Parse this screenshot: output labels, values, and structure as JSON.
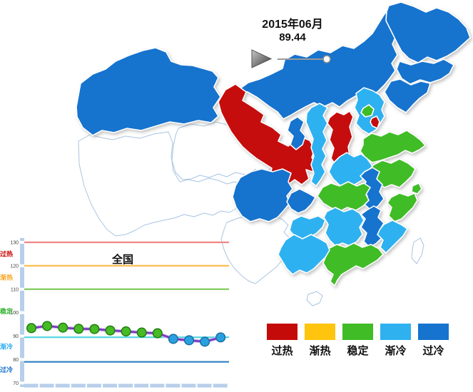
{
  "header": {
    "period": "2015年06月",
    "value": "89.44"
  },
  "colors": {
    "过热": "#C50A0A",
    "渐热": "#FFC40D",
    "稳定": "#3FBC26",
    "渐冷": "#2FB1F0",
    "过冷": "#1673CE",
    "none": "#FFFFFF"
  },
  "legend": {
    "items": [
      {
        "label": "过热",
        "color": "#C50A0A"
      },
      {
        "label": "渐热",
        "color": "#FFC40D"
      },
      {
        "label": "稳定",
        "color": "#3FBC26"
      },
      {
        "label": "渐冷",
        "color": "#2FB1F0"
      },
      {
        "label": "过冷",
        "color": "#1673CE"
      }
    ]
  },
  "map": {
    "provinces": [
      {
        "name": "西藏",
        "status": "none"
      },
      {
        "name": "青海",
        "status": "none"
      },
      {
        "name": "云南",
        "status": "none"
      },
      {
        "name": "海南",
        "status": "none"
      },
      {
        "name": "台湾",
        "status": "none"
      },
      {
        "name": "新疆",
        "status": "过冷"
      },
      {
        "name": "内蒙古",
        "status": "过冷"
      },
      {
        "name": "黑龙江",
        "status": "过冷"
      },
      {
        "name": "吉林",
        "status": "过冷"
      },
      {
        "name": "辽宁",
        "status": "过冷"
      },
      {
        "name": "甘肃",
        "status": "过热"
      },
      {
        "name": "宁夏",
        "status": "过冷"
      },
      {
        "name": "四川",
        "status": "过冷"
      },
      {
        "name": "重庆",
        "status": "过冷"
      },
      {
        "name": "陕西",
        "status": "渐冷"
      },
      {
        "name": "山西",
        "status": "过热"
      },
      {
        "name": "河北",
        "status": "渐冷"
      },
      {
        "name": "北京",
        "status": "稳定"
      },
      {
        "name": "天津",
        "status": "过热"
      },
      {
        "name": "山东",
        "status": "稳定"
      },
      {
        "name": "河南",
        "status": "渐冷"
      },
      {
        "name": "江苏",
        "status": "稳定"
      },
      {
        "name": "安徽",
        "status": "过冷"
      },
      {
        "name": "上海",
        "status": "稳定"
      },
      {
        "name": "浙江",
        "status": "稳定"
      },
      {
        "name": "湖北",
        "status": "稳定"
      },
      {
        "name": "贵州",
        "status": "渐冷"
      },
      {
        "name": "湖南",
        "status": "渐冷"
      },
      {
        "name": "江西",
        "status": "过冷"
      },
      {
        "name": "福建",
        "status": "渐冷"
      },
      {
        "name": "广东",
        "status": "稳定"
      },
      {
        "name": "广西",
        "status": "渐冷"
      }
    ]
  },
  "chart_data": {
    "type": "line",
    "title": "全国",
    "x_count": 13,
    "values": [
      93.4,
      94.3,
      93.6,
      93.1,
      93.0,
      92.4,
      92.0,
      91.5,
      91.2,
      88.8,
      88.2,
      87.6,
      89.44
    ],
    "point_status": [
      "稳定",
      "稳定",
      "稳定",
      "稳定",
      "稳定",
      "稳定",
      "稳定",
      "稳定",
      "稳定",
      "渐冷",
      "渐冷",
      "渐冷",
      "渐冷"
    ],
    "ylim": [
      70,
      130
    ],
    "yticks": [
      130,
      120,
      110,
      100,
      90,
      80,
      70
    ],
    "zones": [
      {
        "label": "过热",
        "line_value": 130,
        "label_value": 125,
        "line_color": "#EF8585",
        "label_color": "#CC0000"
      },
      {
        "label": "渐热",
        "line_value": 120,
        "label_value": 115,
        "line_color": "#FBBF53",
        "label_color": "#F5A623"
      },
      {
        "label": "稳定",
        "line_value": 110,
        "label_value": 100.5,
        "line_color": "#83CB5C",
        "label_color": "#2FB02F"
      },
      {
        "label": "渐冷",
        "line_value": 89.5,
        "label_value": 85.5,
        "line_color": "#4FD6DF",
        "label_color": "#29ADEF"
      },
      {
        "label": "过冷",
        "line_value": 79,
        "label_value": 75.5,
        "line_color": "#2D7FC1",
        "label_color": "#1673CE"
      }
    ],
    "line_color": "#7B2FC1",
    "line_halo_color": "#D4B8EE",
    "marker_colors": {
      "稳定": {
        "fill": "#46BB24",
        "stroke": "#1E7E0E"
      },
      "渐冷": {
        "fill": "#2AA0DF",
        "stroke": "#17709F"
      }
    },
    "axis_color": "#B7CFE9",
    "tick_label_color": "#444444",
    "legend_position": "none",
    "grid": "zone-lines-only"
  }
}
